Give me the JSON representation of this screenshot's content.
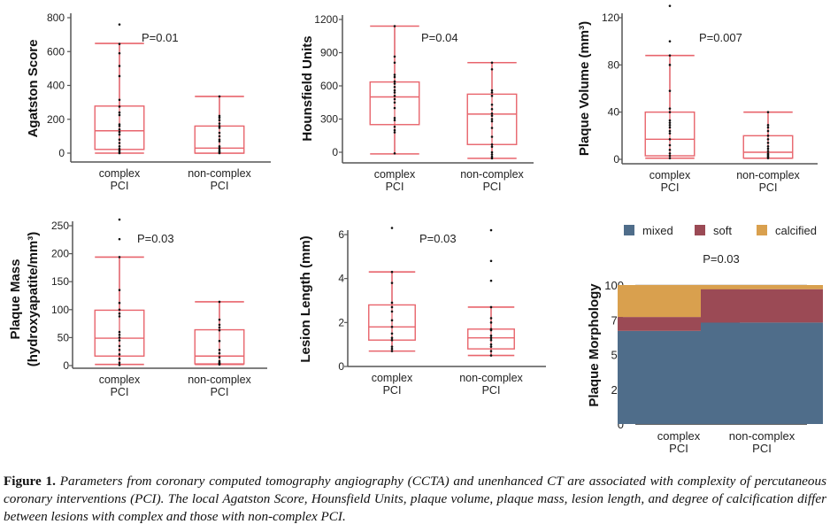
{
  "figure": {
    "caption_label": "Figure 1.",
    "caption_text": "Parameters from coronary computed tomography angiography (CCTA) and unenhanced CT are associated with complexity of percutaneous coronary interventions (PCI). The local Agatston Score, Hounsfield Units, plaque volume, plaque mass, lesion length, and degree of calcification differ between lesions with complex and those with non-complex PCI."
  },
  "chart_data": [
    {
      "type": "box",
      "id": "agatston",
      "ylabel": "Agatston Score",
      "ylim": [
        0,
        800
      ],
      "yticks": [
        0,
        200,
        400,
        600,
        800
      ],
      "annotation": "P=0.01",
      "categories": [
        "complex\nPCI",
        "non-complex\nPCI"
      ],
      "groups": [
        {
          "name": "complex PCI",
          "whisker_low": 0,
          "q1": 22,
          "median": 132,
          "q3": 278,
          "whisker_high": 648,
          "points": [
            760,
            645,
            590,
            515,
            455,
            315,
            275,
            240,
            225,
            170,
            160,
            140,
            125,
            110,
            80,
            60,
            40,
            25,
            15,
            5,
            0
          ]
        },
        {
          "name": "non-complex PCI",
          "whisker_low": 0,
          "q1": 0,
          "median": 30,
          "q3": 160,
          "whisker_high": 335,
          "points": [
            335,
            220,
            210,
            195,
            175,
            160,
            150,
            120,
            100,
            80,
            70,
            40,
            30,
            20,
            10,
            5,
            0
          ]
        }
      ]
    },
    {
      "type": "box",
      "id": "hounsfield",
      "ylabel": "Hounsfield Units",
      "ylim": [
        -100,
        1200
      ],
      "yticks": [
        0,
        300,
        600,
        900,
        1200
      ],
      "annotation": "P=0.04",
      "categories": [
        "complex\nPCI",
        "non-complex\nPCI"
      ],
      "groups": [
        {
          "name": "complex PCI",
          "whisker_low": -15,
          "q1": 250,
          "median": 500,
          "q3": 635,
          "whisker_high": 1140,
          "points": [
            1140,
            865,
            810,
            700,
            680,
            640,
            620,
            590,
            560,
            540,
            510,
            480,
            450,
            400,
            310,
            290,
            230,
            200,
            180,
            -10
          ]
        },
        {
          "name": "non-complex PCI",
          "whisker_low": -55,
          "q1": 70,
          "median": 345,
          "q3": 525,
          "whisker_high": 810,
          "points": [
            810,
            750,
            560,
            540,
            510,
            430,
            390,
            350,
            330,
            300,
            280,
            220,
            140,
            70,
            50,
            0,
            -20,
            -40,
            -55
          ]
        }
      ]
    },
    {
      "type": "box",
      "id": "plaque-volume",
      "ylabel": "Plaque Volume (mm³)",
      "ylim": [
        0,
        140
      ],
      "yticks": [
        0,
        40,
        80,
        120
      ],
      "annotation": "P=0.007",
      "categories": [
        "complex\nPCI",
        "non-complex\nPCI"
      ],
      "groups": [
        {
          "name": "complex PCI",
          "whisker_low": 1,
          "q1": 3,
          "median": 17,
          "q3": 40,
          "whisker_high": 88,
          "points": [
            130,
            100,
            88,
            80,
            58,
            43,
            40,
            33,
            31,
            29,
            27,
            24,
            22,
            17,
            12,
            8,
            5,
            3,
            1
          ]
        },
        {
          "name": "non-complex PCI",
          "whisker_low": 1,
          "q1": 1,
          "median": 6,
          "q3": 20,
          "whisker_high": 40,
          "points": [
            40,
            29,
            27,
            24,
            20,
            17,
            14,
            11,
            9,
            7,
            5,
            4,
            3,
            2,
            1
          ]
        }
      ]
    },
    {
      "type": "box",
      "id": "plaque-mass",
      "ylabel": "Plaque Mass (hydroxyapatite/mm³)",
      "ylim": [
        0,
        270
      ],
      "yticks": [
        0,
        50,
        100,
        150,
        200,
        250
      ],
      "annotation": "P=0.03",
      "categories": [
        "complex\nPCI",
        "non-complex\nPCI"
      ],
      "groups": [
        {
          "name": "complex PCI",
          "whisker_low": 2,
          "q1": 17,
          "median": 49,
          "q3": 99,
          "whisker_high": 194,
          "points": [
            261,
            226,
            194,
            135,
            112,
            100,
            93,
            88,
            60,
            55,
            50,
            45,
            35,
            28,
            20,
            12,
            5,
            1
          ]
        },
        {
          "name": "non-complex PCI",
          "whisker_low": 2,
          "q1": 3,
          "median": 17,
          "q3": 64,
          "whisker_high": 114,
          "points": [
            114,
            82,
            73,
            68,
            63,
            44,
            28,
            22,
            15,
            8,
            5,
            4,
            3,
            2
          ]
        }
      ]
    },
    {
      "type": "box",
      "id": "lesion-length",
      "ylabel": "Lesion Length (mm)",
      "ylim": [
        0,
        6.5
      ],
      "yticks": [
        0,
        2,
        4,
        6
      ],
      "annotation": "P=0.03",
      "categories": [
        "complex\nPCI",
        "non-complex\nPCI"
      ],
      "groups": [
        {
          "name": "complex PCI",
          "whisker_low": 0.7,
          "q1": 1.2,
          "median": 1.8,
          "q3": 2.8,
          "whisker_high": 4.3,
          "points": [
            6.3,
            4.3,
            3.8,
            2.9,
            2.7,
            2.5,
            2.1,
            1.8,
            1.5,
            1.3,
            1.2,
            0.9,
            0.8,
            0.7
          ]
        },
        {
          "name": "non-complex PCI",
          "whisker_low": 0.5,
          "q1": 0.8,
          "median": 1.3,
          "q3": 1.7,
          "whisker_high": 2.7,
          "points": [
            6.2,
            4.8,
            3.9,
            2.7,
            2.2,
            2.0,
            1.7,
            1.65,
            1.4,
            1.3,
            1.2,
            1.0,
            0.9,
            0.7,
            0.5
          ]
        }
      ]
    },
    {
      "type": "stacked-bar",
      "id": "plaque-morphology",
      "ylabel": "Plaque Morphology",
      "ylim": [
        0,
        100
      ],
      "yticks": [
        0,
        25,
        50,
        75,
        100
      ],
      "grid": true,
      "annotation": "P=0.03",
      "legend_position": "top",
      "categories": [
        "complex\nPCI",
        "non-complex\nPCI"
      ],
      "series": [
        {
          "name": "mixed",
          "color": "#4f6d8a",
          "values": [
            67,
            73
          ]
        },
        {
          "name": "soft",
          "color": "#9b4a55",
          "values": [
            10,
            24
          ]
        },
        {
          "name": "calcified",
          "color": "#d9a04e",
          "values": [
            23,
            3
          ]
        }
      ]
    }
  ],
  "colors": {
    "box": "#e8646c",
    "whisker": "#d8343f",
    "point": "#111111",
    "axis": "#555555"
  }
}
